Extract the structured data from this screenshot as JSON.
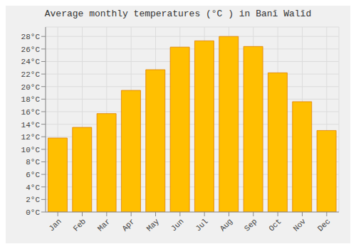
{
  "chart_data": {
    "type": "bar",
    "title": "Average monthly temperatures (°C ) in Banī Walīd",
    "categories": [
      "Jan",
      "Feb",
      "Mar",
      "Apr",
      "May",
      "Jun",
      "Jul",
      "Aug",
      "Sep",
      "Oct",
      "Nov",
      "Dec"
    ],
    "values": [
      11.8,
      13.5,
      15.7,
      19.4,
      22.7,
      26.3,
      27.3,
      28.0,
      26.4,
      22.2,
      17.6,
      13.0
    ],
    "color": "#FFBF00",
    "ylim": [
      0,
      29.5
    ],
    "yticks": [
      {
        "value": 0,
        "label": "0°C"
      },
      {
        "value": 2,
        "label": "2°C"
      },
      {
        "value": 4,
        "label": "4°C"
      },
      {
        "value": 6,
        "label": "6°C"
      },
      {
        "value": 8,
        "label": "8°C"
      },
      {
        "value": 10,
        "label": "10°C"
      },
      {
        "value": 12,
        "label": "12°C"
      },
      {
        "value": 14,
        "label": "14°C"
      },
      {
        "value": 16,
        "label": "16°C"
      },
      {
        "value": 18,
        "label": "18°C"
      },
      {
        "value": 20,
        "label": "20°C"
      },
      {
        "value": 22,
        "label": "22°C"
      },
      {
        "value": 24,
        "label": "24°C"
      },
      {
        "value": 26,
        "label": "26°C"
      },
      {
        "value": 28,
        "label": "28°C"
      }
    ],
    "grid": true
  }
}
